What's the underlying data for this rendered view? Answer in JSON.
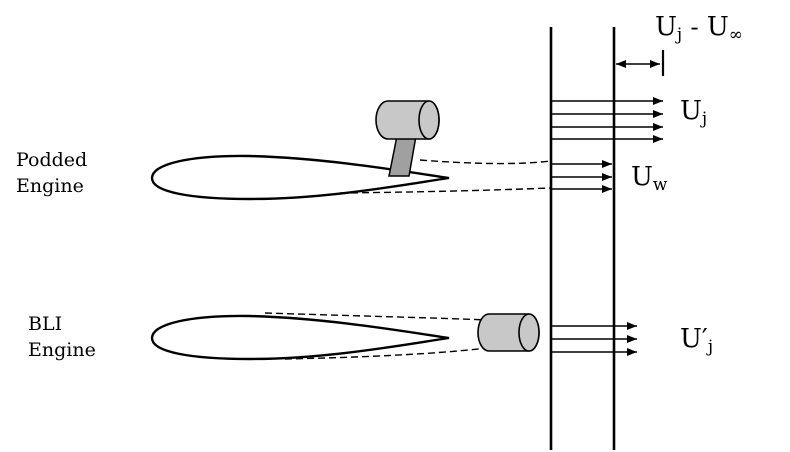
{
  "labels": {
    "podded": {
      "line1": "Podded",
      "line2": "Engine"
    },
    "bli": {
      "line1": "BLI",
      "line2": "Engine"
    }
  },
  "velocities": {
    "excess": {
      "base": "U",
      "sub": "j",
      "op": "-",
      "base2": "U",
      "sub2": "∞"
    },
    "jet": {
      "base": "U",
      "sub": "j"
    },
    "wake": {
      "base": "U",
      "sub": "w"
    },
    "bli_jet": {
      "base": "U′",
      "sub": "j"
    }
  },
  "colors": {
    "ink": "#000000",
    "nacelle_fill": "#c8c8c8",
    "pylon_fill": "#a0a0a0"
  }
}
